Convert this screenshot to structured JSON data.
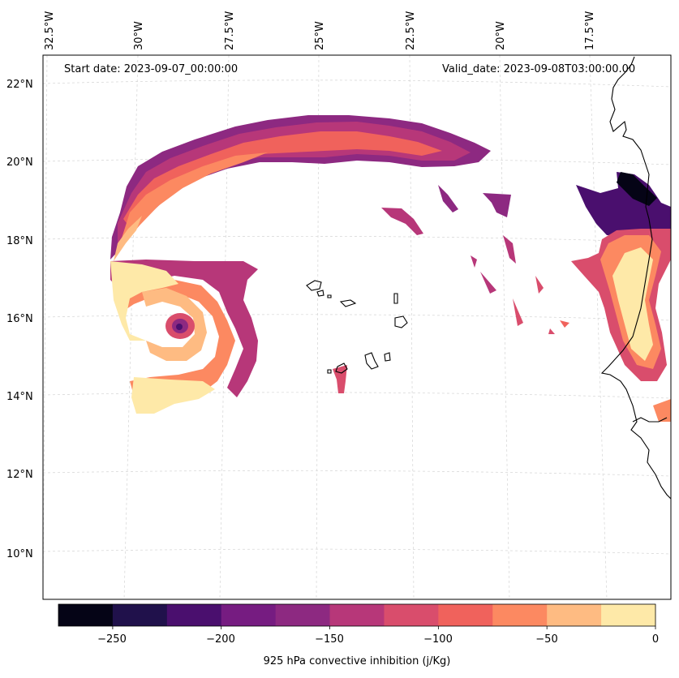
{
  "map": {
    "start_date": "Start date: 2023-09-07_00:00:00",
    "valid_date": "Valid_date: 2023-09-08T03:00:00.00",
    "lon_labels": [
      "32.5°W",
      "30°W",
      "27.5°W",
      "25°W",
      "22.5°W",
      "20°W",
      "17.5°W"
    ],
    "lat_labels": [
      "22°N",
      "20°N",
      "18°N",
      "16°N",
      "14°N",
      "12°N",
      "10°N"
    ],
    "features": [
      "Cabo Verde islands",
      "West African coastline",
      "Hurricane eye near 29.5°W 15.8°N"
    ]
  },
  "colorbar": {
    "label": "925 hPa convective inhibition (j/Kg)",
    "ticks": [
      "−250",
      "−200",
      "−150",
      "−100",
      "−50",
      "0"
    ],
    "levels": [
      -275,
      -250,
      -225,
      -200,
      -175,
      -150,
      -125,
      -100,
      -75,
      -50,
      -25,
      0
    ],
    "colors": [
      "#050416",
      "#20114b",
      "#4a0f6e",
      "#761c81",
      "#8d2981",
      "#b73779",
      "#d94d6c",
      "#f0625c",
      "#fc8961",
      "#febb82",
      "#fee9a8"
    ]
  }
}
